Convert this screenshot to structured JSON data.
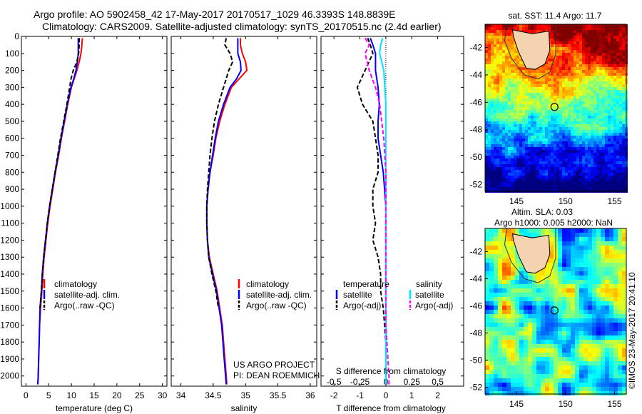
{
  "header": {
    "line1": "Argo profile: AO 5902458_42 17-May-2017 20170517_1029 46.3393S 148.8839E",
    "line2": "Climatology: CARS2009. Satellite-adjusted climatology: synTS_20170515.nc (2.4d earlier)"
  },
  "colors": {
    "red": "#ff0000",
    "blue": "#0000ff",
    "black": "#000000",
    "cyan": "#00e5ff",
    "magenta": "#ff00ff"
  },
  "depth_axis": {
    "ylim": [
      0,
      2060
    ],
    "ticks": [
      0,
      100,
      200,
      300,
      400,
      500,
      600,
      700,
      800,
      900,
      1000,
      1100,
      1200,
      1300,
      1400,
      1500,
      1600,
      1700,
      1800,
      1900,
      2000
    ]
  },
  "chart_data": [
    {
      "type": "line",
      "id": "temperature",
      "xlabel": "temperature (deg C)",
      "xlim": [
        -1,
        31
      ],
      "xticks": [
        0,
        5,
        10,
        15,
        20,
        25,
        30
      ],
      "legend": [
        "climatology",
        "satellite-adj. clim.",
        "Argo(..raw -QC)"
      ],
      "series": [
        {
          "name": "climatology",
          "color": "red",
          "dash": "",
          "depth": [
            10,
            50,
            100,
            150,
            200,
            250,
            300,
            400,
            500,
            600,
            700,
            800,
            900,
            1000,
            1100,
            1200,
            1300,
            1400,
            1500,
            1600,
            1700,
            1800,
            1900,
            2000,
            2050
          ],
          "values": [
            12.4,
            12.3,
            12.1,
            11.7,
            11.2,
            10.6,
            10.0,
            9.2,
            8.5,
            7.8,
            7.2,
            6.5,
            5.9,
            5.3,
            4.8,
            4.4,
            4.0,
            3.7,
            3.5,
            3.2,
            3.0,
            2.9,
            2.8,
            2.7,
            2.6
          ]
        },
        {
          "name": "satellite-adj. clim.",
          "color": "blue",
          "dash": "",
          "depth": [
            10,
            50,
            100,
            150,
            200,
            250,
            300,
            400,
            500,
            600,
            700,
            800,
            900,
            1000,
            1100,
            1200,
            1300,
            1400,
            1500,
            1600,
            1700,
            1800,
            1900,
            2000,
            2050
          ],
          "values": [
            11.5,
            11.5,
            11.5,
            11.3,
            11.0,
            10.5,
            9.9,
            9.1,
            8.4,
            7.7,
            7.1,
            6.4,
            5.8,
            5.2,
            4.7,
            4.3,
            3.9,
            3.6,
            3.4,
            3.1,
            3.0,
            2.9,
            2.8,
            2.7,
            2.6
          ]
        },
        {
          "name": "Argo(..raw -QC)",
          "color": "black",
          "dash": "6,3",
          "depth": [
            10,
            50,
            100,
            150,
            200,
            250,
            300,
            400,
            500,
            600,
            700,
            800,
            900,
            1000,
            1100,
            1200,
            1300,
            1400,
            1500,
            1600
          ],
          "values": [
            11.7,
            11.7,
            11.6,
            11.2,
            10.4,
            9.9,
            9.6,
            9.0,
            8.3,
            7.6,
            7.0,
            6.4,
            5.8,
            5.2,
            4.7,
            4.3,
            3.9,
            3.6,
            3.4,
            3.1
          ]
        }
      ]
    },
    {
      "type": "line",
      "id": "salinity",
      "xlabel": "salinity",
      "xlim": [
        33.85,
        36.1
      ],
      "xticks": [
        34,
        34.5,
        35,
        35.5,
        36
      ],
      "legend": [
        "climatology",
        "satellite-adj. clim.",
        "Argo(..raw -QC)"
      ],
      "series": [
        {
          "name": "climatology",
          "color": "red",
          "dash": "",
          "depth": [
            10,
            50,
            100,
            150,
            200,
            250,
            300,
            400,
            500,
            600,
            700,
            800,
            900,
            1000,
            1100,
            1200,
            1300,
            1400,
            1500,
            1600,
            1700,
            1800,
            1900,
            2000,
            2050
          ],
          "values": [
            34.92,
            34.92,
            34.95,
            35.0,
            35.02,
            34.9,
            34.78,
            34.68,
            34.6,
            34.54,
            34.5,
            34.45,
            34.42,
            34.4,
            34.4,
            34.41,
            34.44,
            34.5,
            34.56,
            34.6,
            34.64,
            34.66,
            34.68,
            34.7,
            34.71
          ]
        },
        {
          "name": "satellite-adj. clim.",
          "color": "blue",
          "dash": "",
          "depth": [
            10,
            50,
            100,
            150,
            200,
            250,
            300,
            400,
            500,
            600,
            700,
            800,
            900,
            1000,
            1100,
            1200,
            1300,
            1400,
            1500,
            1600,
            1700,
            1800,
            1900,
            2000,
            2050
          ],
          "values": [
            34.88,
            34.88,
            34.88,
            34.92,
            34.93,
            34.86,
            34.76,
            34.66,
            34.58,
            34.53,
            34.49,
            34.45,
            34.42,
            34.4,
            34.4,
            34.41,
            34.43,
            34.49,
            34.55,
            34.59,
            34.63,
            34.65,
            34.67,
            34.69,
            34.7
          ]
        },
        {
          "name": "Argo(..raw -QC)",
          "color": "black",
          "dash": "6,3",
          "depth": [
            10,
            50,
            100,
            150,
            200,
            250,
            300,
            400,
            500,
            600,
            700,
            800,
            900,
            1000,
            1100,
            1200,
            1300,
            1400,
            1500,
            1600
          ],
          "values": [
            34.7,
            34.68,
            34.76,
            34.8,
            34.74,
            34.7,
            34.66,
            34.58,
            34.52,
            34.48,
            34.45,
            34.43,
            34.41,
            34.4,
            34.4,
            34.41,
            34.43,
            34.48,
            34.54,
            34.58
          ]
        }
      ]
    },
    {
      "type": "line",
      "id": "differences",
      "xlabel": "T difference from climatology",
      "xlabel_top": "S difference from climatology",
      "xlim": [
        -2.5,
        3.0
      ],
      "xticks": [
        -2,
        -1,
        0,
        1,
        2
      ],
      "s_ticks": [
        -0.5,
        -0.25,
        0,
        0.25,
        0.5
      ],
      "s_ticks_text": [
        "-0.5",
        "-0.25",
        "0",
        "0.25",
        "0.5"
      ],
      "legend_temperature_title": "temperature",
      "legend_salinity_title": "salinity",
      "legend_temperature": [
        "satellite",
        "Argo(-adj)"
      ],
      "legend_salinity": [
        "satellite",
        "Argo(-adj)"
      ],
      "series": [
        {
          "name": "T satellite",
          "color": "blue",
          "dash": "",
          "depth": [
            10,
            50,
            100,
            200,
            300,
            400,
            500,
            600,
            700,
            800,
            900,
            1000,
            1100,
            1200,
            1300,
            1400,
            1500,
            1600,
            1700,
            1800,
            1900,
            2000,
            2050
          ],
          "values": [
            -0.6,
            -0.5,
            -0.4,
            -0.4,
            -0.3,
            -0.25,
            -0.3,
            -0.3,
            -0.2,
            -0.1,
            -0.05,
            0,
            0,
            0,
            0,
            0,
            0,
            0,
            0,
            0,
            0,
            0,
            0
          ]
        },
        {
          "name": "T Argo(-adj)",
          "color": "black",
          "dash": "6,3",
          "depth": [
            10,
            50,
            100,
            200,
            300,
            400,
            500,
            600,
            700,
            800,
            900,
            1000,
            1100,
            1200,
            1300,
            1400,
            1500,
            1600,
            1700,
            1800
          ],
          "values": [
            -0.7,
            -0.6,
            -0.5,
            -0.8,
            -1.1,
            -0.9,
            -0.5,
            -0.4,
            -0.3,
            -0.3,
            -0.5,
            -0.5,
            -0.4,
            -0.5,
            -0.3,
            -0.2,
            -0.2,
            -0.1,
            -0.05,
            0
          ]
        },
        {
          "name": "S satellite",
          "color": "cyan",
          "dash": "",
          "depth": [
            10,
            50,
            100,
            200,
            300,
            400,
            500,
            600,
            700,
            800,
            900,
            1000,
            1100,
            1200,
            1300,
            1400,
            1500,
            1600,
            1700,
            1800,
            1900,
            2000,
            2050
          ],
          "values": [
            -0.03,
            -0.05,
            -0.06,
            -0.02,
            -0.01,
            0,
            0,
            0,
            0,
            0,
            0,
            0,
            0,
            0,
            0,
            0,
            0,
            0,
            0,
            0,
            0,
            0,
            0
          ]
        },
        {
          "name": "S Argo(-adj)",
          "color": "magenta",
          "dash": "6,3",
          "depth": [
            10,
            50,
            100,
            200,
            300,
            400,
            500,
            600,
            700,
            800,
            900,
            1000,
            1100,
            1200,
            1300,
            1400,
            1500,
            1600,
            1700,
            1800,
            1900,
            2000,
            2050
          ],
          "values": [
            -0.2,
            -0.16,
            -0.2,
            -0.16,
            -0.1,
            -0.06,
            -0.04,
            -0.02,
            -0.01,
            0,
            0,
            0,
            0,
            0,
            0,
            0,
            0,
            0,
            0,
            0.01,
            0.02,
            0.03,
            0.03
          ]
        }
      ]
    },
    {
      "type": "heatmap",
      "id": "sst_map",
      "title": "sat. SST: 11.4 Argo: 11.7",
      "xticks": [
        145,
        150,
        155
      ],
      "yticks": [
        -42,
        -44,
        -46,
        -48,
        -50,
        -52
      ],
      "xlim": [
        141.8,
        156.2
      ],
      "ylim": [
        -52.5,
        -40.3
      ],
      "argo_position": [
        148.88,
        -46.34
      ]
    },
    {
      "type": "heatmap",
      "id": "sla_map",
      "title1": "Altim. SLA: 0.03",
      "title2": "Argo h1000: 0.005 h2000: NaN",
      "xticks": [
        145,
        150,
        155
      ],
      "yticks": [
        -42,
        -44,
        -46,
        -48,
        -50,
        -52
      ],
      "xlim": [
        141.8,
        156.2
      ],
      "ylim": [
        -52.5,
        -40.3
      ],
      "argo_position": [
        148.88,
        -46.34
      ]
    }
  ],
  "annotation": {
    "line1": "US ARGO PROJECT",
    "line2": "PI: DEAN ROEMMICH"
  },
  "credit": "©IMOS 23-May-2017 20:41:10"
}
